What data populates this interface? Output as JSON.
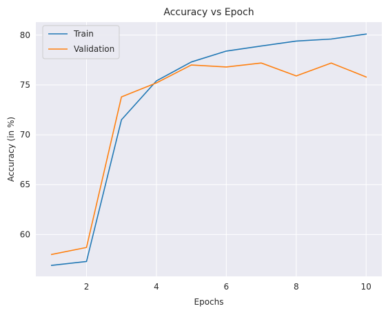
{
  "chart_data": {
    "type": "line",
    "title": "Accuracy vs Epoch",
    "xlabel": "Epochs",
    "ylabel": "Accuracy (in %)",
    "x": [
      1,
      2,
      3,
      4,
      5,
      6,
      7,
      8,
      9,
      10
    ],
    "series": [
      {
        "name": "Train",
        "color": "#1f77b4",
        "values": [
          56.9,
          57.3,
          71.5,
          75.4,
          77.3,
          78.4,
          78.9,
          79.4,
          79.6,
          80.1
        ]
      },
      {
        "name": "Validation",
        "color": "#ff7f0e",
        "values": [
          58.0,
          58.7,
          73.8,
          75.2,
          77.0,
          76.8,
          77.2,
          75.9,
          77.2,
          75.8
        ]
      }
    ],
    "xlim": [
      0.55,
      10.45
    ],
    "ylim": [
      55.8,
      81.3
    ],
    "x_ticks": [
      2,
      4,
      6,
      8,
      10
    ],
    "y_ticks": [
      60,
      65,
      70,
      75,
      80
    ],
    "grid": true,
    "legend": "top-left",
    "background": "#eaeaf2",
    "grid_color": "#ffffff"
  }
}
